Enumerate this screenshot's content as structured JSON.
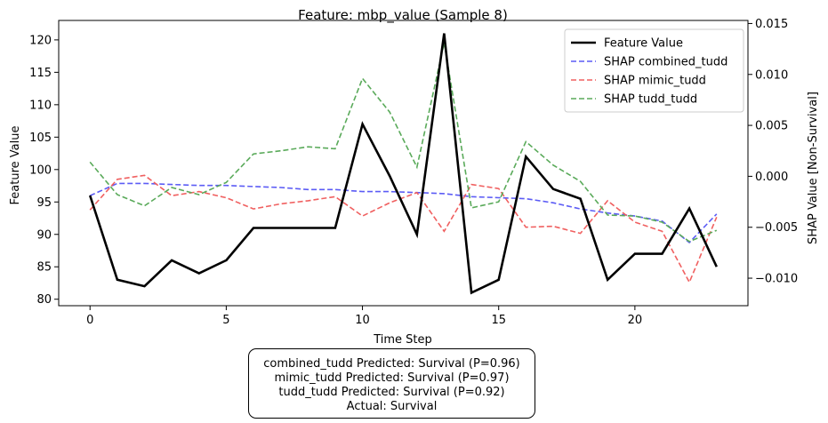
{
  "chart_data": {
    "type": "line",
    "title": "Feature: mbp_value (Sample 8)",
    "xlabel": "Time Step",
    "ylabel": "Feature Value",
    "ylabel_right": "SHAP Value [Non-Survival]",
    "xlim": [
      -1.15,
      24.15
    ],
    "ylim": [
      79.0,
      123.0
    ],
    "ylim_right": [
      -0.0127,
      0.0153
    ],
    "x_ticks": [
      0,
      5,
      10,
      15,
      20
    ],
    "x_tick_labels": [
      "0",
      "5",
      "10",
      "15",
      "20"
    ],
    "y_ticks": [
      80,
      85,
      90,
      95,
      100,
      105,
      110,
      115,
      120
    ],
    "y_tick_labels": [
      "80",
      "85",
      "90",
      "95",
      "100",
      "105",
      "110",
      "115",
      "120"
    ],
    "y_right_ticks": [
      -0.01,
      -0.005,
      0.0,
      0.005,
      0.01,
      0.015
    ],
    "y_right_tick_labels": [
      "−0.010",
      "−0.005",
      "0.000",
      "0.005",
      "0.010",
      "0.015"
    ],
    "grid": false,
    "legend_position": "top-right",
    "x": [
      0,
      1,
      2,
      3,
      4,
      5,
      6,
      7,
      8,
      9,
      10,
      11,
      12,
      13,
      14,
      15,
      16,
      17,
      18,
      19,
      20,
      21,
      22,
      23
    ],
    "series": [
      {
        "name": "Feature Value",
        "axis": "left",
        "color": "#000000",
        "style": "solid",
        "values": [
          96,
          83,
          82,
          86,
          84,
          86,
          91,
          91,
          91,
          91,
          107,
          99,
          90,
          121,
          81,
          83,
          102,
          97,
          95.5,
          83,
          87,
          87,
          94,
          85
        ]
      },
      {
        "name": "SHAP combined_tudd",
        "axis": "right",
        "color": "#5c5cf5",
        "style": "dashed",
        "values": [
          -0.0019,
          -0.0007,
          -0.0007,
          -0.0008,
          -0.0009,
          -0.0009,
          -0.001,
          -0.0011,
          -0.0013,
          -0.0013,
          -0.0015,
          -0.0015,
          -0.0016,
          -0.0017,
          -0.002,
          -0.0021,
          -0.0022,
          -0.0026,
          -0.0032,
          -0.0036,
          -0.0039,
          -0.0044,
          -0.0065,
          -0.0037
        ]
      },
      {
        "name": "SHAP mimic_tudd",
        "axis": "right",
        "color": "#f06060",
        "style": "dashed",
        "values": [
          -0.0033,
          -0.0003,
          0.0001,
          -0.0019,
          -0.0015,
          -0.0021,
          -0.0032,
          -0.0027,
          -0.0024,
          -0.002,
          -0.0039,
          -0.0026,
          -0.0016,
          -0.0054,
          -0.0008,
          -0.0012,
          -0.005,
          -0.0049,
          -0.0056,
          -0.0024,
          -0.0045,
          -0.0054,
          -0.0104,
          -0.004
        ]
      },
      {
        "name": "SHAP tudd_tudd",
        "axis": "right",
        "color": "#5aaa5a",
        "style": "dashed",
        "values": [
          0.0014,
          -0.0018,
          -0.0029,
          -0.0011,
          -0.0018,
          -0.0006,
          0.0022,
          0.0025,
          0.0029,
          0.0027,
          0.0096,
          0.0063,
          0.0009,
          0.0131,
          -0.0031,
          -0.0025,
          0.0034,
          0.0011,
          -0.0005,
          -0.0038,
          -0.0039,
          -0.0045,
          -0.0064,
          -0.0053
        ]
      }
    ]
  },
  "info_box": {
    "lines": [
      "combined_tudd Predicted: Survival (P=0.96)",
      "mimic_tudd Predicted: Survival (P=0.97)",
      "tudd_tudd Predicted: Survival (P=0.92)",
      "Actual: Survival"
    ]
  }
}
